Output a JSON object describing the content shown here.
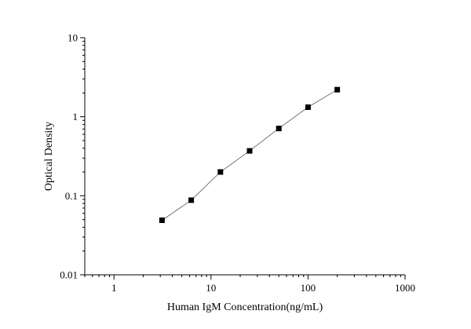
{
  "chart_data": {
    "type": "scatter",
    "xlabel": "Human IgM Concentration(ng/mL)",
    "ylabel": "Optical Density",
    "x_scale": "log",
    "y_scale": "log",
    "xlim": [
      0.5,
      1000
    ],
    "ylim": [
      0.01,
      10
    ],
    "x_ticks": [
      {
        "value": 1,
        "label": "1"
      },
      {
        "value": 10,
        "label": "10"
      },
      {
        "value": 100,
        "label": "100"
      },
      {
        "value": 1000,
        "label": "1000"
      }
    ],
    "y_ticks": [
      {
        "value": 0.01,
        "label": "0.01"
      },
      {
        "value": 0.1,
        "label": "0.1"
      },
      {
        "value": 1,
        "label": "1"
      },
      {
        "value": 10,
        "label": "10"
      }
    ],
    "grid": false,
    "legend": "none",
    "series": [
      {
        "x": [
          3.125,
          6.25,
          12.5,
          25,
          50,
          100,
          200
        ],
        "y": [
          0.049,
          0.088,
          0.2,
          0.37,
          0.71,
          1.32,
          2.2
        ],
        "marker": "square",
        "line": "fit",
        "color": "#000000"
      }
    ]
  }
}
